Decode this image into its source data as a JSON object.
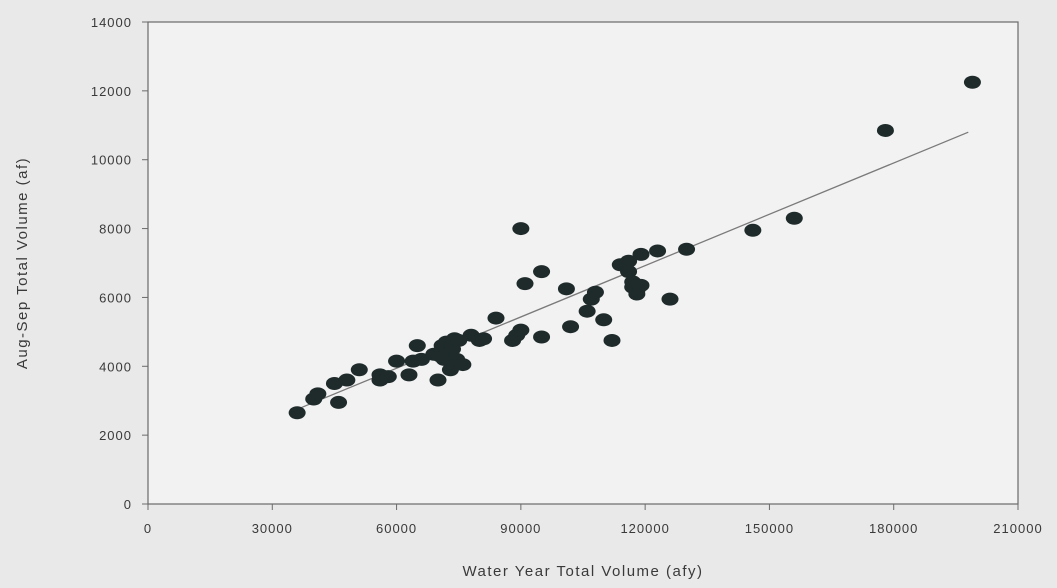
{
  "chart_data": {
    "type": "scatter",
    "title": "",
    "xlabel": "Water Year Total Volume (afy)",
    "ylabel": "Aug-Sep Total Volume (af)",
    "xlim": [
      0,
      210000
    ],
    "ylim": [
      0,
      14000
    ],
    "xticks": [
      0,
      30000,
      60000,
      90000,
      120000,
      150000,
      180000,
      210000
    ],
    "yticks": [
      0,
      2000,
      4000,
      6000,
      8000,
      10000,
      12000,
      14000
    ],
    "grid": false,
    "legend": "none",
    "colors": {
      "points": "#1f2b2b",
      "trendline": "#7a7a7a",
      "plot_bg": "#f2f2f3",
      "page_bg": "#e9e9ea",
      "frame": "#6a6a6a"
    },
    "series": [
      {
        "points": [
          [
            36000,
            2650
          ],
          [
            40000,
            3050
          ],
          [
            41000,
            3200
          ],
          [
            45000,
            3500
          ],
          [
            46000,
            2950
          ],
          [
            48000,
            3600
          ],
          [
            51000,
            3900
          ],
          [
            56000,
            3600
          ],
          [
            56000,
            3750
          ],
          [
            58000,
            3700
          ],
          [
            60000,
            4150
          ],
          [
            63000,
            3750
          ],
          [
            64000,
            4150
          ],
          [
            65000,
            4600
          ],
          [
            66000,
            4200
          ],
          [
            69000,
            4350
          ],
          [
            70000,
            3600
          ],
          [
            70500,
            4300
          ],
          [
            71000,
            4600
          ],
          [
            71500,
            4200
          ],
          [
            72000,
            4700
          ],
          [
            73000,
            3900
          ],
          [
            73500,
            4500
          ],
          [
            74000,
            4800
          ],
          [
            74500,
            4200
          ],
          [
            75000,
            4750
          ],
          [
            76000,
            4050
          ],
          [
            78000,
            4900
          ],
          [
            80000,
            4750
          ],
          [
            81000,
            4800
          ],
          [
            84000,
            5400
          ],
          [
            88000,
            4750
          ],
          [
            89000,
            4900
          ],
          [
            90000,
            5050
          ],
          [
            90000,
            8000
          ],
          [
            91000,
            6400
          ],
          [
            95000,
            6750
          ],
          [
            95000,
            4850
          ],
          [
            101000,
            6250
          ],
          [
            102000,
            5150
          ],
          [
            106000,
            5600
          ],
          [
            107000,
            5950
          ],
          [
            108000,
            6150
          ],
          [
            110000,
            5350
          ],
          [
            112000,
            4750
          ],
          [
            114000,
            6950
          ],
          [
            116000,
            7050
          ],
          [
            116000,
            6750
          ],
          [
            117000,
            6300
          ],
          [
            117000,
            6450
          ],
          [
            118000,
            6100
          ],
          [
            118000,
            6200
          ],
          [
            119000,
            7250
          ],
          [
            119000,
            6350
          ],
          [
            123000,
            7350
          ],
          [
            126000,
            5950
          ],
          [
            130000,
            7400
          ],
          [
            146000,
            7950
          ],
          [
            156000,
            8300
          ],
          [
            178000,
            10850
          ],
          [
            199000,
            12250
          ]
        ]
      }
    ],
    "trendline": {
      "x": [
        36000,
        198000
      ],
      "y": [
        2750,
        10800
      ]
    }
  }
}
